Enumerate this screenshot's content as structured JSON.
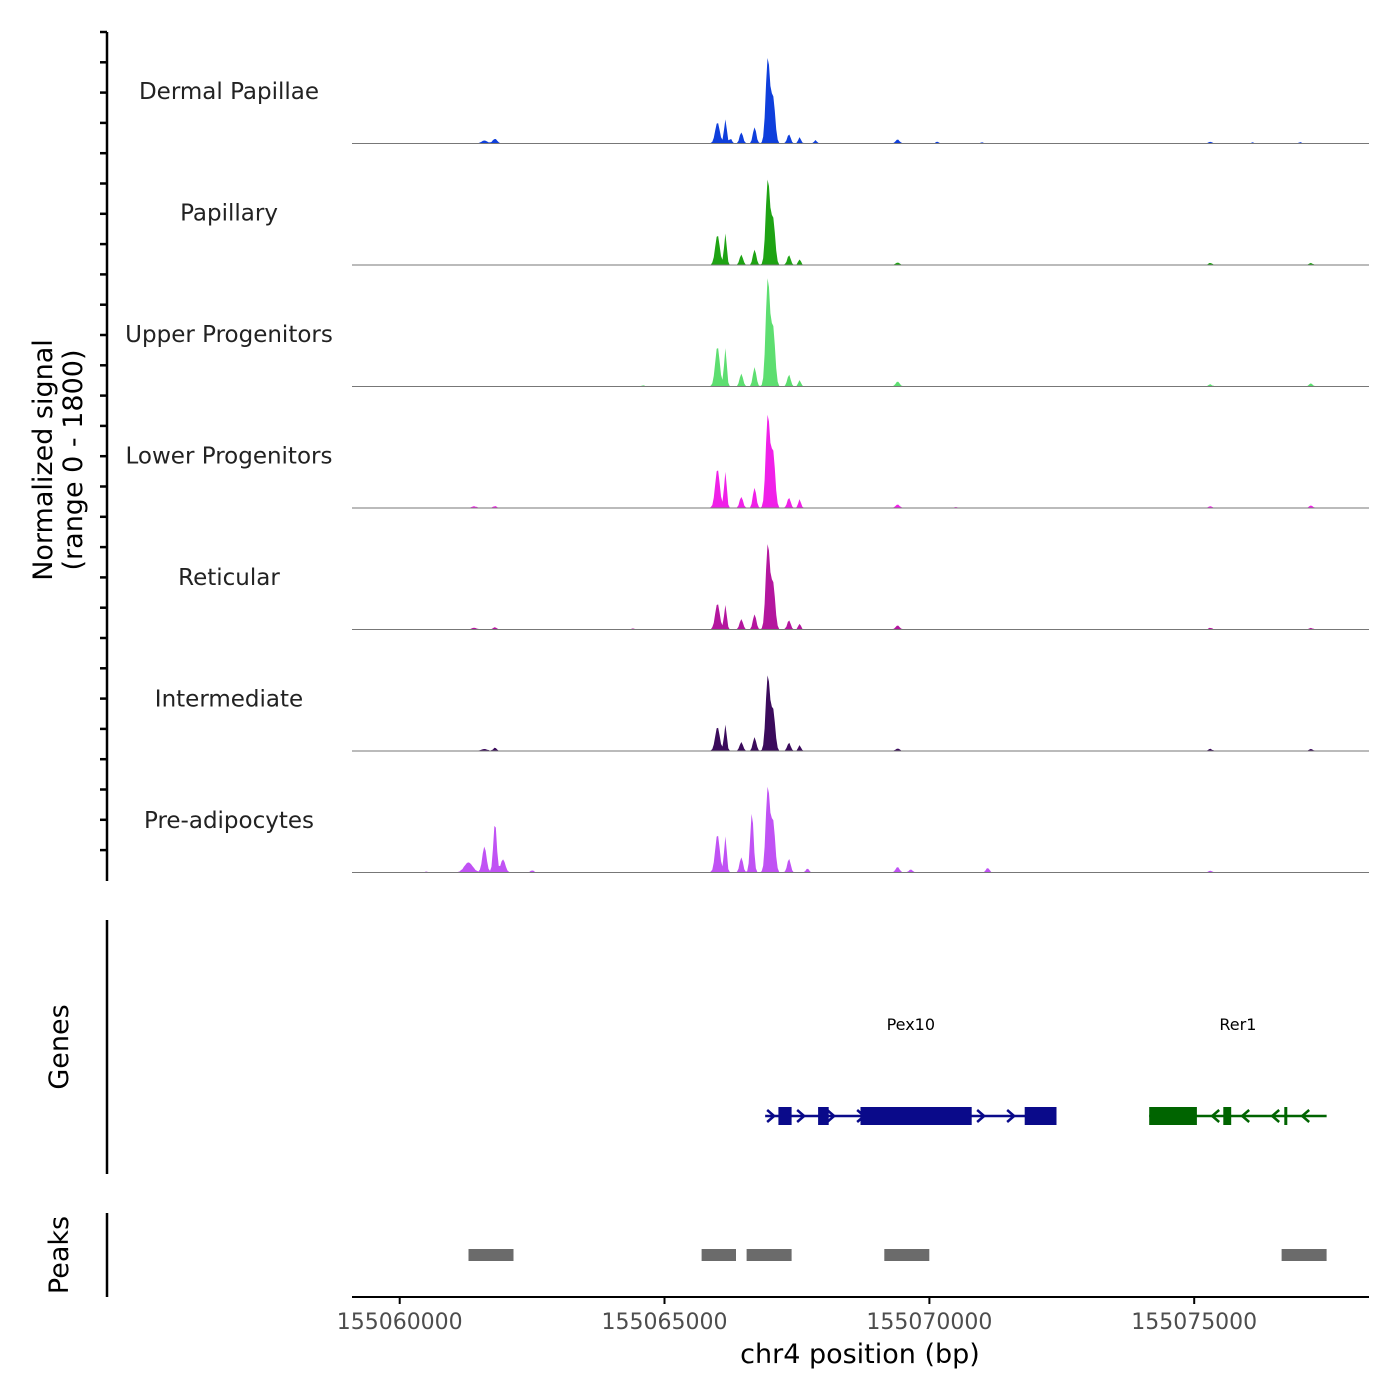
{
  "chart_data": {
    "type": "area",
    "ylabel_line1": "Normalized signal",
    "ylabel_line2": "(range 0 - 1800)",
    "xlabel": "chr4 position (bp)",
    "xlim": [
      155059100,
      155078300
    ],
    "ylim": [
      0,
      1800
    ],
    "x_ticks": [
      {
        "value": 155060000,
        "label": "155060000"
      },
      {
        "value": 155065000,
        "label": "155065000"
      },
      {
        "value": 155070000,
        "label": "155070000"
      },
      {
        "value": 155075000,
        "label": "155075000"
      }
    ],
    "series": [
      {
        "name": "Dermal Papillae",
        "color": "#0f3fdc",
        "peaks": [
          [
            155061600,
            60,
            140
          ],
          [
            155061800,
            90,
            120
          ],
          [
            155066000,
            420,
            120
          ],
          [
            155066150,
            480,
            70
          ],
          [
            155066250,
            90,
            70
          ],
          [
            155066450,
            220,
            90
          ],
          [
            155066700,
            320,
            90
          ],
          [
            155066950,
            1700,
            110
          ],
          [
            155067050,
            900,
            110
          ],
          [
            155067350,
            180,
            90
          ],
          [
            155067550,
            120,
            70
          ],
          [
            155067850,
            60,
            70
          ],
          [
            155069400,
            80,
            100
          ],
          [
            155070150,
            35,
            70
          ],
          [
            155071000,
            20,
            70
          ],
          [
            155075300,
            30,
            90
          ],
          [
            155076100,
            20,
            70
          ],
          [
            155077000,
            20,
            70
          ]
        ]
      },
      {
        "name": "Papillary",
        "color": "#1ea313",
        "peaks": [
          [
            155066000,
            600,
            120
          ],
          [
            155066150,
            620,
            70
          ],
          [
            155066450,
            200,
            90
          ],
          [
            155066700,
            300,
            90
          ],
          [
            155066950,
            1700,
            110
          ],
          [
            155067050,
            900,
            110
          ],
          [
            155067350,
            190,
            90
          ],
          [
            155067550,
            110,
            70
          ],
          [
            155069400,
            50,
            100
          ],
          [
            155075300,
            40,
            90
          ],
          [
            155077200,
            40,
            90
          ]
        ]
      },
      {
        "name": "Upper Progenitors",
        "color": "#5dde70",
        "peaks": [
          [
            155066000,
            800,
            120
          ],
          [
            155066150,
            760,
            70
          ],
          [
            155066450,
            250,
            90
          ],
          [
            155066700,
            380,
            90
          ],
          [
            155066950,
            2150,
            110
          ],
          [
            155067050,
            1150,
            110
          ],
          [
            155067350,
            230,
            90
          ],
          [
            155067550,
            120,
            70
          ],
          [
            155069400,
            100,
            100
          ],
          [
            155064600,
            20,
            70
          ],
          [
            155075300,
            40,
            90
          ],
          [
            155077200,
            60,
            90
          ]
        ]
      },
      {
        "name": "Lower Progenitors",
        "color": "#f020e8",
        "peaks": [
          [
            155061400,
            30,
            120
          ],
          [
            155061800,
            35,
            90
          ],
          [
            155066000,
            780,
            120
          ],
          [
            155066150,
            720,
            70
          ],
          [
            155066450,
            220,
            90
          ],
          [
            155066700,
            400,
            90
          ],
          [
            155066950,
            1850,
            110
          ],
          [
            155067050,
            1100,
            110
          ],
          [
            155067350,
            200,
            90
          ],
          [
            155067550,
            170,
            70
          ],
          [
            155069400,
            70,
            100
          ],
          [
            155070500,
            20,
            70
          ],
          [
            155075300,
            30,
            90
          ],
          [
            155077200,
            50,
            90
          ]
        ]
      },
      {
        "name": "Reticular",
        "color": "#b4169e",
        "peaks": [
          [
            155061400,
            30,
            120
          ],
          [
            155061800,
            40,
            90
          ],
          [
            155066000,
            520,
            120
          ],
          [
            155066150,
            480,
            70
          ],
          [
            155066450,
            200,
            90
          ],
          [
            155066700,
            300,
            90
          ],
          [
            155066950,
            1700,
            110
          ],
          [
            155067050,
            900,
            110
          ],
          [
            155067350,
            180,
            90
          ],
          [
            155067550,
            110,
            70
          ],
          [
            155069400,
            80,
            100
          ],
          [
            155064400,
            20,
            70
          ],
          [
            155075300,
            30,
            90
          ],
          [
            155077200,
            30,
            90
          ]
        ]
      },
      {
        "name": "Intermediate",
        "color": "#3b0b5c",
        "peaks": [
          [
            155061600,
            40,
            140
          ],
          [
            155061800,
            60,
            90
          ],
          [
            155066000,
            480,
            120
          ],
          [
            155066150,
            520,
            70
          ],
          [
            155066450,
            170,
            90
          ],
          [
            155066700,
            270,
            90
          ],
          [
            155066950,
            1500,
            110
          ],
          [
            155067050,
            800,
            110
          ],
          [
            155067350,
            160,
            90
          ],
          [
            155067550,
            110,
            70
          ],
          [
            155069400,
            50,
            100
          ],
          [
            155075300,
            40,
            90
          ],
          [
            155077200,
            40,
            90
          ]
        ]
      },
      {
        "name": "Pre-adipocytes",
        "color": "#c052f4",
        "peaks": [
          [
            155061300,
            200,
            220
          ],
          [
            155061600,
            520,
            110
          ],
          [
            155061800,
            1000,
            90
          ],
          [
            155061950,
            260,
            120
          ],
          [
            155066000,
            760,
            120
          ],
          [
            155066150,
            720,
            70
          ],
          [
            155066450,
            300,
            90
          ],
          [
            155066650,
            1200,
            90
          ],
          [
            155066950,
            1700,
            110
          ],
          [
            155067050,
            1000,
            110
          ],
          [
            155067350,
            270,
            90
          ],
          [
            155067700,
            80,
            80
          ],
          [
            155069400,
            110,
            100
          ],
          [
            155069650,
            60,
            90
          ],
          [
            155071100,
            90,
            90
          ],
          [
            155060500,
            20,
            70
          ],
          [
            155062500,
            40,
            90
          ],
          [
            155075300,
            30,
            90
          ]
        ]
      }
    ],
    "genes_track_label": "Genes",
    "genes": [
      {
        "name": "Pex10",
        "start": 155066900,
        "end": 155072400,
        "strand": "+",
        "color": "#0a0a8a",
        "exons": [
          [
            155067150,
            155067400
          ],
          [
            155067900,
            155068100
          ],
          [
            155068700,
            155070800
          ],
          [
            155071800,
            155072400
          ]
        ]
      },
      {
        "name": "Rer1",
        "start": 155074150,
        "end": 155077500,
        "strand": "-",
        "color": "#006400",
        "exons": [
          [
            155074150,
            155075050
          ],
          [
            155075550,
            155075700
          ],
          [
            155076700,
            155076740
          ]
        ]
      }
    ],
    "peaks_track_label": "Peaks",
    "peak_regions": [
      [
        155061300,
        155062150
      ],
      [
        155065700,
        155066350
      ],
      [
        155066550,
        155067400
      ],
      [
        155069150,
        155070000
      ],
      [
        155076650,
        155077500
      ]
    ],
    "colors": {
      "peak_region": "#6b6b6b",
      "baseline": "#777777",
      "axis": "#000000"
    }
  }
}
